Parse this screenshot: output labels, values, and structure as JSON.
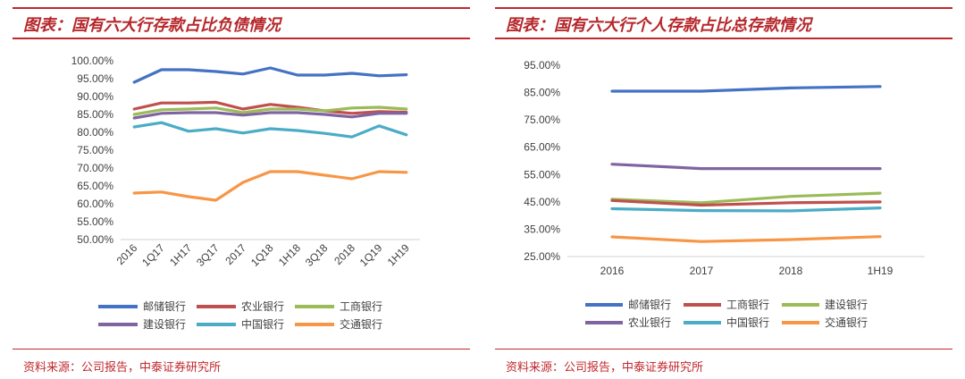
{
  "left": {
    "title": "图表：国有六大行存款占比负债情况",
    "source": "资料来源：公司报告，中泰证券研究所"
  },
  "right": {
    "title": "图表：国有六大行个人存款占比总存款情况",
    "source": "资料来源：公司报告，中泰证券研究所"
  },
  "chart_data": [
    {
      "type": "line",
      "title": "图表：国有六大行存款占比负债情况",
      "categories": [
        "2016",
        "1Q17",
        "1H17",
        "3Q17",
        "2017",
        "1Q18",
        "1H18",
        "3Q18",
        "2018",
        "1Q19",
        "1H19"
      ],
      "ylim": [
        50,
        100
      ],
      "yticks": [
        "50.00%",
        "55.00%",
        "60.00%",
        "65.00%",
        "70.00%",
        "75.00%",
        "80.00%",
        "85.00%",
        "90.00%",
        "95.00%",
        "100.00%"
      ],
      "grid": false,
      "legend_position": "bottom",
      "series": [
        {
          "name": "邮储银行",
          "color": "#4472c4",
          "values": [
            94.0,
            97.5,
            97.5,
            97.0,
            96.3,
            98.0,
            96.0,
            96.0,
            96.5,
            95.8,
            96.1
          ]
        },
        {
          "name": "农业银行",
          "color": "#c0504d",
          "values": [
            86.5,
            88.2,
            88.2,
            88.4,
            86.5,
            87.8,
            87.0,
            86.0,
            85.3,
            85.8,
            85.6
          ]
        },
        {
          "name": "工商银行",
          "color": "#9bbb59",
          "values": [
            85.0,
            86.3,
            86.5,
            86.8,
            85.5,
            86.5,
            86.5,
            86.0,
            86.8,
            87.0,
            86.5
          ]
        },
        {
          "name": "建设银行",
          "color": "#8064a2",
          "values": [
            84.0,
            85.3,
            85.5,
            85.5,
            84.8,
            85.5,
            85.5,
            85.0,
            84.3,
            85.3,
            85.3
          ]
        },
        {
          "name": "中国银行",
          "color": "#4bacc6",
          "values": [
            81.5,
            82.7,
            80.3,
            81.0,
            79.8,
            81.0,
            80.5,
            79.7,
            78.7,
            81.8,
            79.3
          ]
        },
        {
          "name": "交通银行",
          "color": "#f79646",
          "values": [
            63.0,
            63.3,
            62.0,
            61.0,
            66.0,
            69.0,
            69.0,
            68.0,
            67.0,
            69.0,
            68.8
          ]
        }
      ],
      "legend_order": [
        "邮储银行",
        "农业银行",
        "工商银行",
        "建设银行",
        "中国银行",
        "交通银行"
      ]
    },
    {
      "type": "line",
      "title": "图表：国有六大行个人存款占比总存款情况",
      "categories": [
        "2016",
        "2017",
        "2018",
        "1H19"
      ],
      "ylim": [
        25,
        95
      ],
      "yticks": [
        "25.00%",
        "35.00%",
        "45.00%",
        "55.00%",
        "65.00%",
        "75.00%",
        "85.00%",
        "95.00%"
      ],
      "grid": false,
      "legend_position": "bottom",
      "series": [
        {
          "name": "邮储银行",
          "color": "#4472c4",
          "values": [
            85.5,
            85.5,
            86.7,
            87.2
          ]
        },
        {
          "name": "农业银行",
          "color": "#8064a2",
          "values": [
            58.8,
            57.2,
            57.2,
            57.2
          ]
        },
        {
          "name": "建设银行",
          "color": "#9bbb59",
          "values": [
            46.0,
            44.7,
            47.0,
            48.2
          ]
        },
        {
          "name": "工商银行",
          "color": "#c0504d",
          "values": [
            45.5,
            43.8,
            44.7,
            45.0
          ]
        },
        {
          "name": "中国银行",
          "color": "#4bacc6",
          "values": [
            42.5,
            41.8,
            41.7,
            42.8
          ]
        },
        {
          "name": "交通银行",
          "color": "#f79646",
          "values": [
            32.2,
            30.5,
            31.2,
            32.3
          ]
        }
      ],
      "legend_order": [
        "邮储银行",
        "工商银行",
        "建设银行",
        "农业银行",
        "中国银行",
        "交通银行"
      ]
    }
  ]
}
